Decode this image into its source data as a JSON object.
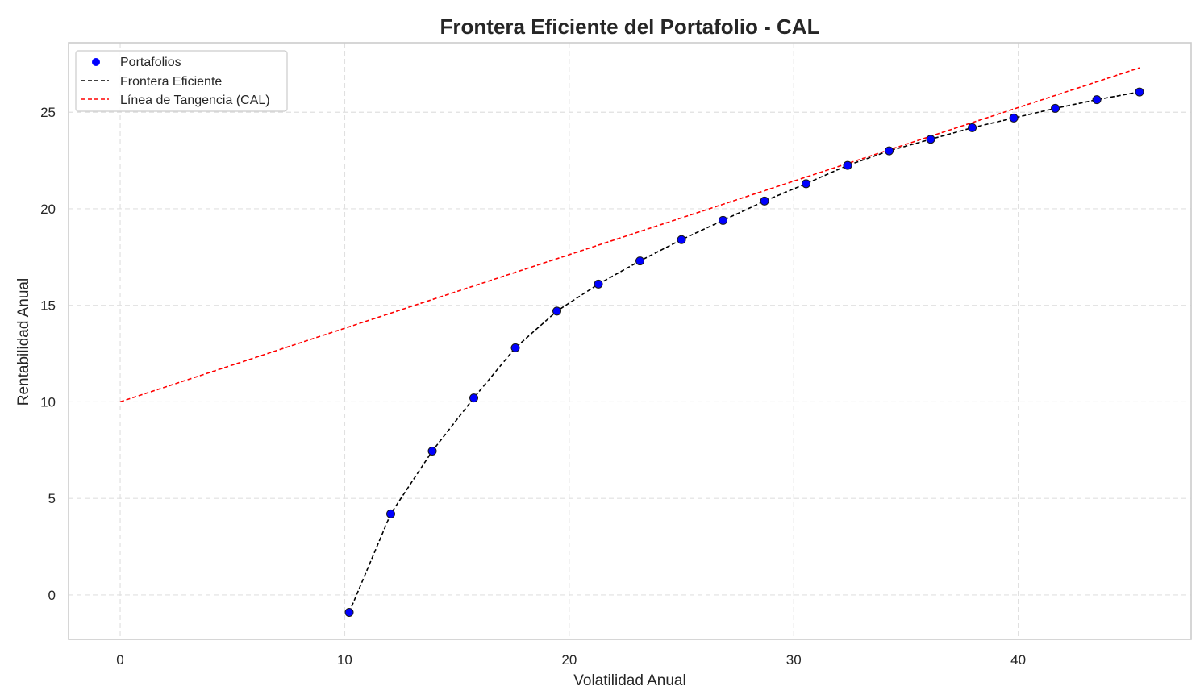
{
  "chart_data": {
    "type": "scatter",
    "title": "Frontera Eficiente del Portafolio - CAL",
    "xlabel": "Volatilidad Anual",
    "ylabel": "Rentabilidad Anual",
    "xlim": [
      -2.3,
      47.7
    ],
    "ylim": [
      -2.3,
      28.6
    ],
    "xticks": [
      0,
      10,
      20,
      30,
      40
    ],
    "yticks": [
      0,
      5,
      10,
      15,
      20,
      25
    ],
    "grid": true,
    "legend_position": "top-left",
    "colors": {
      "points": "#0000ff",
      "point_edge": "#1a1a1a",
      "frontier": "#000000",
      "cal": "#ff0000",
      "grid": "#e0e0e0",
      "frame": "#cccccc"
    },
    "series": [
      {
        "name": "Portafolios",
        "kind": "scatter",
        "x": [
          10.2,
          12.05,
          13.9,
          15.75,
          17.6,
          19.45,
          21.3,
          23.15,
          25.0,
          26.85,
          28.7,
          30.55,
          32.4,
          34.25,
          36.1,
          37.95,
          39.8,
          41.65,
          43.5,
          45.4
        ],
        "y": [
          -0.9,
          4.2,
          7.45,
          10.2,
          12.8,
          14.7,
          16.1,
          17.3,
          18.4,
          19.4,
          20.4,
          21.3,
          22.25,
          23.0,
          23.6,
          24.2,
          24.7,
          25.2,
          25.65,
          26.05
        ]
      },
      {
        "name": "Frontera Eficiente",
        "kind": "line",
        "x": [
          10.2,
          12.05,
          13.9,
          15.75,
          17.6,
          19.45,
          21.3,
          23.15,
          25.0,
          26.85,
          28.7,
          30.55,
          32.4,
          34.25,
          36.1,
          37.95,
          39.8,
          41.65,
          43.5,
          45.4
        ],
        "y": [
          -0.9,
          4.2,
          7.45,
          10.2,
          12.8,
          14.7,
          16.1,
          17.3,
          18.4,
          19.4,
          20.4,
          21.3,
          22.25,
          23.0,
          23.6,
          24.2,
          24.7,
          25.2,
          25.65,
          26.05
        ]
      },
      {
        "name": "Línea de Tangencia (CAL)",
        "kind": "line",
        "x": [
          0,
          45.4
        ],
        "y": [
          10.0,
          27.3
        ]
      }
    ]
  }
}
